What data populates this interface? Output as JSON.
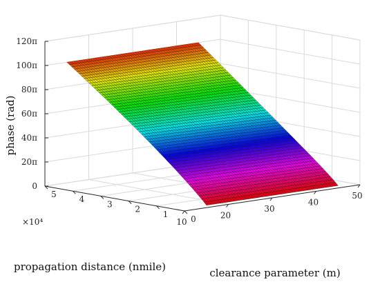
{
  "chart_data": {
    "type": "surface3d",
    "title": "",
    "zlabel": "phase (rad)",
    "ylabel": "propagation distance (nmile)",
    "xlabel": "clearance parameter (m)",
    "y_multiplier": "×10⁴",
    "xlim": [
      10,
      50
    ],
    "ylim": [
      0,
      5
    ],
    "zlim": [
      0,
      120
    ],
    "x_ticks": [
      "10",
      "20",
      "30",
      "40",
      "50"
    ],
    "y_ticks": [
      "0",
      "1",
      "2",
      "3",
      "4",
      "5"
    ],
    "z_ticks": [
      "0",
      "20π",
      "40π",
      "60π",
      "80π",
      "100π",
      "120π"
    ],
    "x_tick_values": [
      10,
      20,
      30,
      40,
      50
    ],
    "y_tick_values": [
      0,
      1,
      2,
      3,
      4,
      5
    ],
    "z_tick_values": [
      0,
      20,
      40,
      60,
      80,
      100,
      120
    ],
    "surface": {
      "x_range": [
        15,
        45
      ],
      "y_range": [
        0,
        5
      ],
      "z_units": "π rad",
      "corners": [
        {
          "x": 15,
          "y": 0,
          "z": 2
        },
        {
          "x": 45,
          "y": 0,
          "z": 2
        },
        {
          "x": 15,
          "y": 5,
          "z": 100
        },
        {
          "x": 45,
          "y": 5,
          "z": 100
        }
      ],
      "colormap": "hsv",
      "grid_lines": 56
    },
    "grid": true
  }
}
